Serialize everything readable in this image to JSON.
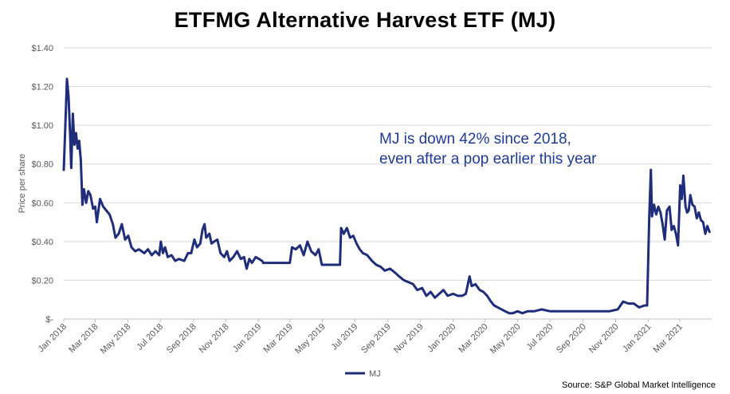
{
  "chart_data": {
    "type": "line",
    "title": "ETFMG Alternative Harvest ETF (MJ)",
    "ylabel": "Price per share",
    "xlabel": "",
    "ylim": [
      0,
      1.4
    ],
    "y_ticks": [
      "$-",
      "$0.20",
      "$0.40",
      "$0.60",
      "$0.80",
      "$1.00",
      "$1.20",
      "$1.40"
    ],
    "x_ticks": [
      "Jan 2018",
      "Mar 2018",
      "May 2018",
      "Jul 2018",
      "Sep 2018",
      "Nov 2018",
      "Jan 2019",
      "Mar 2019",
      "May 2019",
      "Jul 2019",
      "Sep 2019",
      "Nov 2019",
      "Jan 2020",
      "Mar 2020",
      "May 2020",
      "Jul 2020",
      "Sep 2020",
      "Nov 2020",
      "Jan 2021",
      "Mar 2021"
    ],
    "grid": true,
    "legend_position": "bottom-center",
    "annotation": [
      "MJ is down 42% since 2018,",
      "even after a pop earlier this year"
    ],
    "source": "Source: S&P Global Market Intelligence",
    "series": [
      {
        "name": "MJ",
        "color": "#1f2d7a",
        "points": [
          [
            "2018-01-01",
            0.77
          ],
          [
            "2018-01-04",
            1.0
          ],
          [
            "2018-01-07",
            1.24
          ],
          [
            "2018-01-10",
            1.15
          ],
          [
            "2018-01-13",
            0.95
          ],
          [
            "2018-01-15",
            0.78
          ],
          [
            "2018-01-18",
            1.06
          ],
          [
            "2018-01-21",
            0.9
          ],
          [
            "2018-01-24",
            0.96
          ],
          [
            "2018-01-27",
            0.88
          ],
          [
            "2018-01-30",
            0.92
          ],
          [
            "2018-02-02",
            0.82
          ],
          [
            "2018-02-05",
            0.59
          ],
          [
            "2018-02-08",
            0.67
          ],
          [
            "2018-02-12",
            0.6
          ],
          [
            "2018-02-16",
            0.66
          ],
          [
            "2018-02-20",
            0.64
          ],
          [
            "2018-02-25",
            0.57
          ],
          [
            "2018-03-01",
            0.58
          ],
          [
            "2018-03-04",
            0.5
          ],
          [
            "2018-03-10",
            0.62
          ],
          [
            "2018-03-16",
            0.58
          ],
          [
            "2018-03-22",
            0.56
          ],
          [
            "2018-03-28",
            0.54
          ],
          [
            "2018-04-03",
            0.49
          ],
          [
            "2018-04-08",
            0.42
          ],
          [
            "2018-04-14",
            0.44
          ],
          [
            "2018-04-20",
            0.49
          ],
          [
            "2018-04-26",
            0.41
          ],
          [
            "2018-05-02",
            0.43
          ],
          [
            "2018-05-08",
            0.37
          ],
          [
            "2018-05-15",
            0.35
          ],
          [
            "2018-05-22",
            0.36
          ],
          [
            "2018-06-01",
            0.34
          ],
          [
            "2018-06-08",
            0.36
          ],
          [
            "2018-06-15",
            0.33
          ],
          [
            "2018-06-22",
            0.35
          ],
          [
            "2018-06-29",
            0.33
          ],
          [
            "2018-07-02",
            0.4
          ],
          [
            "2018-07-06",
            0.34
          ],
          [
            "2018-07-10",
            0.37
          ],
          [
            "2018-07-15",
            0.32
          ],
          [
            "2018-07-22",
            0.33
          ],
          [
            "2018-07-29",
            0.3
          ],
          [
            "2018-08-05",
            0.31
          ],
          [
            "2018-08-15",
            0.3
          ],
          [
            "2018-08-22",
            0.34
          ],
          [
            "2018-08-28",
            0.34
          ],
          [
            "2018-09-03",
            0.41
          ],
          [
            "2018-09-08",
            0.37
          ],
          [
            "2018-09-14",
            0.39
          ],
          [
            "2018-09-18",
            0.46
          ],
          [
            "2018-09-22",
            0.49
          ],
          [
            "2018-09-25",
            0.42
          ],
          [
            "2018-10-01",
            0.44
          ],
          [
            "2018-10-05",
            0.39
          ],
          [
            "2018-10-10",
            0.4
          ],
          [
            "2018-10-16",
            0.41
          ],
          [
            "2018-10-22",
            0.34
          ],
          [
            "2018-10-29",
            0.32
          ],
          [
            "2018-11-03",
            0.35
          ],
          [
            "2018-11-08",
            0.3
          ],
          [
            "2018-11-15",
            0.32
          ],
          [
            "2018-11-22",
            0.35
          ],
          [
            "2018-11-29",
            0.31
          ],
          [
            "2018-12-05",
            0.32
          ],
          [
            "2018-12-10",
            0.26
          ],
          [
            "2018-12-15",
            0.31
          ],
          [
            "2018-12-20",
            0.29
          ],
          [
            "2018-12-27",
            0.32
          ],
          [
            "2019-01-02",
            0.31
          ],
          [
            "2019-01-08",
            0.3
          ],
          [
            "2019-01-10",
            0.29
          ],
          [
            "2019-03-01",
            0.29
          ],
          [
            "2019-03-05",
            0.37
          ],
          [
            "2019-03-12",
            0.36
          ],
          [
            "2019-03-20",
            0.38
          ],
          [
            "2019-03-27",
            0.33
          ],
          [
            "2019-04-03",
            0.4
          ],
          [
            "2019-04-10",
            0.35
          ],
          [
            "2019-04-18",
            0.33
          ],
          [
            "2019-04-24",
            0.36
          ],
          [
            "2019-04-30",
            0.28
          ],
          [
            "2019-06-03",
            0.28
          ],
          [
            "2019-06-05",
            0.47
          ],
          [
            "2019-06-10",
            0.44
          ],
          [
            "2019-06-16",
            0.47
          ],
          [
            "2019-06-22",
            0.42
          ],
          [
            "2019-06-28",
            0.43
          ],
          [
            "2019-07-04",
            0.39
          ],
          [
            "2019-07-10",
            0.36
          ],
          [
            "2019-07-16",
            0.34
          ],
          [
            "2019-07-24",
            0.33
          ],
          [
            "2019-08-02",
            0.3
          ],
          [
            "2019-08-10",
            0.28
          ],
          [
            "2019-08-18",
            0.27
          ],
          [
            "2019-08-26",
            0.25
          ],
          [
            "2019-09-05",
            0.26
          ],
          [
            "2019-09-14",
            0.24
          ],
          [
            "2019-09-22",
            0.22
          ],
          [
            "2019-10-01",
            0.2
          ],
          [
            "2019-10-10",
            0.19
          ],
          [
            "2019-10-18",
            0.18
          ],
          [
            "2019-10-26",
            0.15
          ],
          [
            "2019-11-04",
            0.16
          ],
          [
            "2019-11-12",
            0.12
          ],
          [
            "2019-11-20",
            0.14
          ],
          [
            "2019-11-28",
            0.11
          ],
          [
            "2019-12-06",
            0.13
          ],
          [
            "2019-12-14",
            0.15
          ],
          [
            "2019-12-22",
            0.12
          ],
          [
            "2020-01-01",
            0.13
          ],
          [
            "2020-01-10",
            0.12
          ],
          [
            "2020-01-18",
            0.12
          ],
          [
            "2020-01-25",
            0.13
          ],
          [
            "2020-02-01",
            0.22
          ],
          [
            "2020-02-05",
            0.17
          ],
          [
            "2020-02-12",
            0.18
          ],
          [
            "2020-02-20",
            0.15
          ],
          [
            "2020-02-27",
            0.14
          ],
          [
            "2020-03-05",
            0.12
          ],
          [
            "2020-03-12",
            0.09
          ],
          [
            "2020-03-18",
            0.07
          ],
          [
            "2020-03-25",
            0.06
          ],
          [
            "2020-04-01",
            0.05
          ],
          [
            "2020-04-08",
            0.04
          ],
          [
            "2020-04-15",
            0.03
          ],
          [
            "2020-04-22",
            0.03
          ],
          [
            "2020-05-01",
            0.04
          ],
          [
            "2020-05-10",
            0.03
          ],
          [
            "2020-05-20",
            0.04
          ],
          [
            "2020-06-01",
            0.04
          ],
          [
            "2020-06-15",
            0.05
          ],
          [
            "2020-07-01",
            0.04
          ],
          [
            "2020-08-01",
            0.04
          ],
          [
            "2020-09-01",
            0.04
          ],
          [
            "2020-10-01",
            0.04
          ],
          [
            "2020-10-20",
            0.04
          ],
          [
            "2020-11-05",
            0.05
          ],
          [
            "2020-11-15",
            0.09
          ],
          [
            "2020-11-25",
            0.08
          ],
          [
            "2020-12-05",
            0.08
          ],
          [
            "2020-12-15",
            0.06
          ],
          [
            "2020-12-25",
            0.07
          ],
          [
            "2020-12-30",
            0.07
          ],
          [
            "2021-01-03",
            0.53
          ],
          [
            "2021-01-06",
            0.77
          ],
          [
            "2021-01-08",
            0.53
          ],
          [
            "2021-01-12",
            0.59
          ],
          [
            "2021-01-16",
            0.54
          ],
          [
            "2021-01-20",
            0.58
          ],
          [
            "2021-01-24",
            0.55
          ],
          [
            "2021-01-28",
            0.49
          ],
          [
            "2021-02-01",
            0.41
          ],
          [
            "2021-02-05",
            0.56
          ],
          [
            "2021-02-10",
            0.58
          ],
          [
            "2021-02-14",
            0.46
          ],
          [
            "2021-02-18",
            0.48
          ],
          [
            "2021-02-22",
            0.44
          ],
          [
            "2021-02-26",
            0.38
          ],
          [
            "2021-03-02",
            0.69
          ],
          [
            "2021-03-05",
            0.62
          ],
          [
            "2021-03-08",
            0.74
          ],
          [
            "2021-03-12",
            0.58
          ],
          [
            "2021-03-15",
            0.55
          ],
          [
            "2021-03-18",
            0.56
          ],
          [
            "2021-03-21",
            0.64
          ],
          [
            "2021-03-25",
            0.59
          ],
          [
            "2021-03-29",
            0.58
          ],
          [
            "2021-04-02",
            0.52
          ],
          [
            "2021-04-06",
            0.55
          ],
          [
            "2021-04-10",
            0.51
          ],
          [
            "2021-04-14",
            0.5
          ],
          [
            "2021-04-18",
            0.44
          ],
          [
            "2021-04-22",
            0.48
          ],
          [
            "2021-04-26",
            0.45
          ]
        ]
      }
    ]
  }
}
